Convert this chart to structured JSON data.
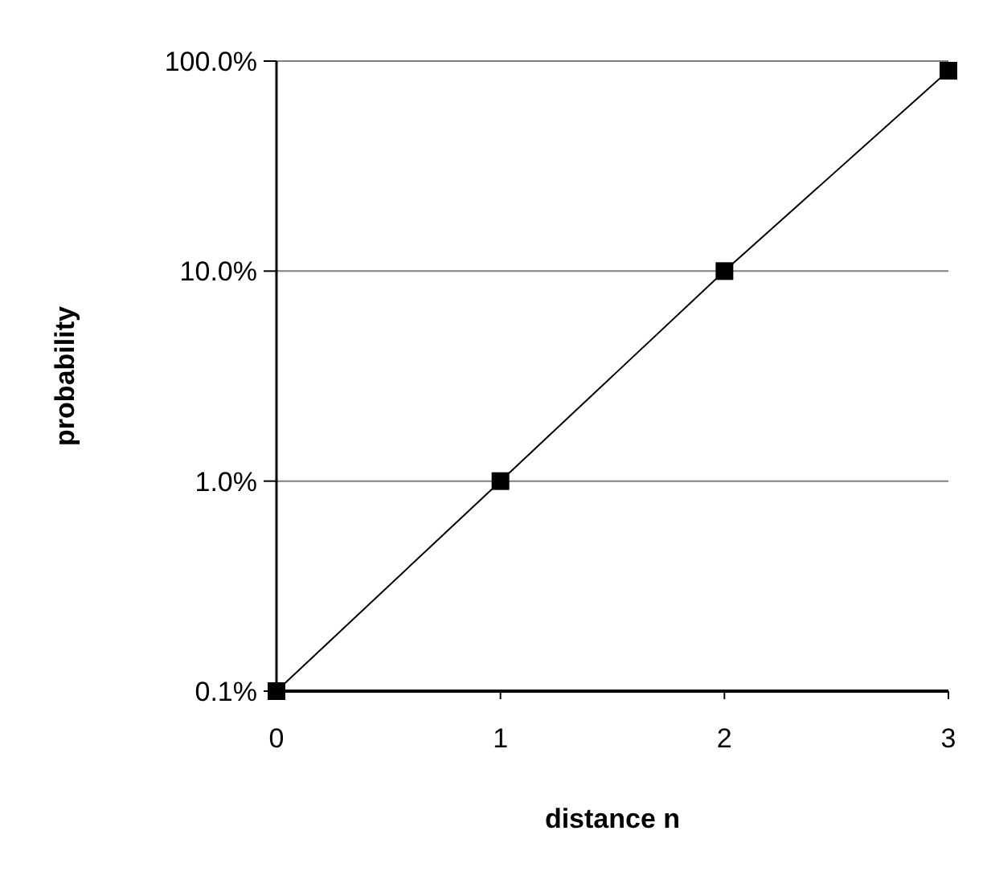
{
  "chart_data": {
    "type": "line",
    "xlabel": "distance n",
    "ylabel": "probability",
    "x": [
      0,
      1,
      2,
      3
    ],
    "series": [
      {
        "color": "#000000",
        "values": [
          0.1,
          1,
          10,
          90
        ]
      }
    ],
    "xlim": [
      0,
      3
    ],
    "xticks": [
      0,
      1,
      2,
      3
    ],
    "ylim": [
      0.1,
      100
    ],
    "log": "y",
    "yticks": [
      {
        "value": 0.1,
        "label": "0.1%"
      },
      {
        "value": 1,
        "label": "1.0%"
      },
      {
        "value": 10,
        "label": "10.0%"
      },
      {
        "value": 100,
        "label": "100.0%"
      }
    ],
    "grid": "y",
    "marker": "square",
    "line_style": "solid"
  }
}
